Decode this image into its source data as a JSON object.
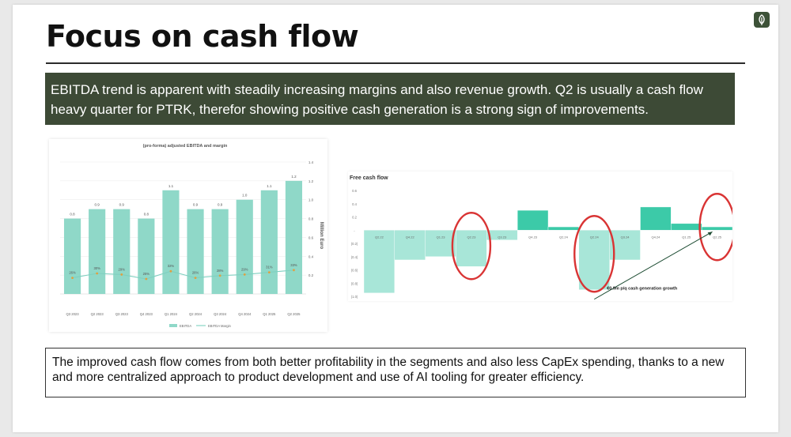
{
  "slide": {
    "title": "Focus on cash flow",
    "logo_icon": "leaf-icon",
    "callout": "EBITDA trend is apparent with steadily increasing margins and also revenue growth. Q2 is usually a cash flow heavy quarter for PTRK, therefor showing positive cash generation is a strong sign of improvements.",
    "footer_text": "The improved cash flow comes from both better profitability in the segments and also less CapEx spending, thanks to a new and more centralized approach to product development and use of AI tooling for greater efficiency."
  },
  "colors": {
    "callout_bg": "#3d4a36",
    "bar": "#8fd8c8",
    "margin_line": "#7fd0c0",
    "margin_marker": "#e0a040",
    "highlight_ring": "#d93434",
    "fcf_positive": "#3ccaa8",
    "fcf_negative": "#a8e6d8"
  },
  "chart_data": [
    {
      "type": "bar",
      "title": "(pro-forma) adjusted EBITDA and margin",
      "ylabel": "Million Euro",
      "ylim": [
        0,
        1.4
      ],
      "yticks": [
        "0.2",
        "0.4",
        "0.6",
        "0.8",
        "1.0",
        "1.2",
        "1.4"
      ],
      "categories": [
        "Q3 2023",
        "Q2 2023",
        "Q3 2023",
        "Q4 2023",
        "Q1 2024",
        "Q2 2024",
        "Q3 2024",
        "Q4 2024",
        "Q1 2025",
        "Q2 2025"
      ],
      "series": [
        {
          "name": "EBITDA",
          "values": [
            0.8,
            0.9,
            0.9,
            0.8,
            1.1,
            0.9,
            0.9,
            1.0,
            1.1,
            1.2
          ],
          "labels": [
            "0.8",
            "0.9",
            "0.9",
            "0.8",
            "1.1",
            "0.9",
            "0.9",
            "1.0",
            "1.1",
            "1.2"
          ]
        },
        {
          "name": "EBITDA Margin",
          "values": [
            26,
            30,
            29,
            25,
            32,
            26,
            28,
            29,
            31,
            33
          ],
          "labels": [
            "26%",
            "30%",
            "29%",
            "25%",
            "32%",
            "26%",
            "28%",
            "29%",
            "31%",
            "33%"
          ]
        }
      ],
      "legend": "bottom"
    },
    {
      "type": "bar",
      "title": "Free cash flow",
      "ylim": [
        -1.0,
        0.6
      ],
      "yticks": [
        "0.6",
        "0.4",
        "0.2",
        "-",
        "(0.2)",
        "(0.4)",
        "(0.6)",
        "(0.8)",
        "(1.0)"
      ],
      "categories": [
        "Q2.22",
        "Q4.22",
        "Q1.23",
        "Q2.23",
        "Q3.23",
        "Q4.23",
        "Q2.24",
        "Q2.24",
        "Q3.24",
        "Q4.24",
        "Q1.25",
        "Q2.25"
      ],
      "values": [
        -0.95,
        -0.45,
        -0.4,
        -0.55,
        -0.15,
        0.3,
        0.05,
        -0.9,
        -0.45,
        0.35,
        0.1,
        0.05
      ],
      "highlighted": [
        "Q2.23",
        "Q2.24",
        "Q2.25"
      ],
      "annotation": "€0.9m p/q cash generation growth"
    }
  ]
}
